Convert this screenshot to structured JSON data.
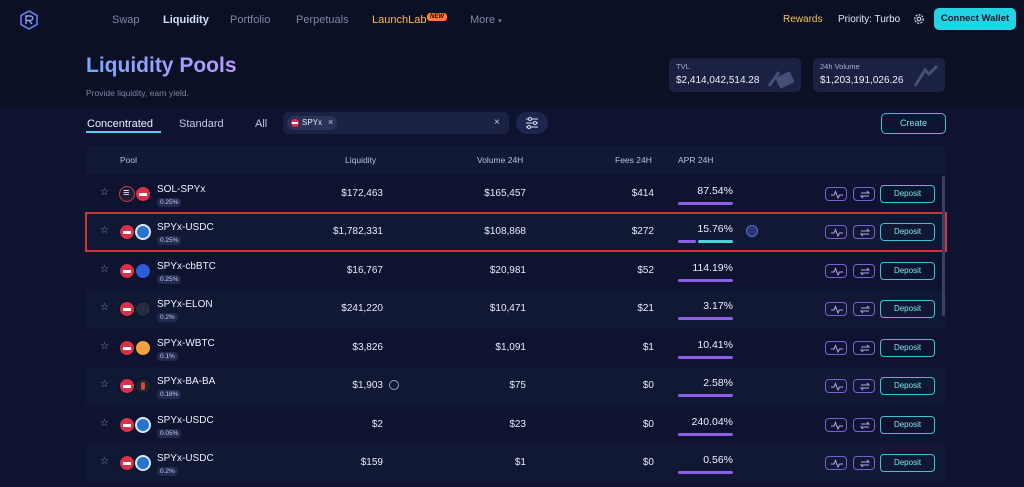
{
  "nav": {
    "links": [
      {
        "label": "Swap"
      },
      {
        "label": "Liquidity"
      },
      {
        "label": "Portfolio"
      },
      {
        "label": "Perpetuals"
      },
      {
        "label": "LaunchLab"
      },
      {
        "label": "More"
      }
    ],
    "new_badge": "NEW",
    "rewards": "Rewards",
    "priority": "Priority: Turbo",
    "connect": "Connect Wallet"
  },
  "hero": {
    "title": "Liquidity Pools",
    "subtitle": "Provide liquidity, earn yield."
  },
  "stats": {
    "tvl_label": "TVL",
    "tvl_value": "$2,414,042,514.28",
    "vol_label": "24h Volume",
    "vol_value": "$1,203,191,026.26"
  },
  "tabs": [
    "Concentrated",
    "Standard",
    "All"
  ],
  "search": {
    "chip": "SPYx"
  },
  "create_label": "Create",
  "columns": {
    "pool": "Pool",
    "liquidity": "Liquidity",
    "volume": "Volume 24H",
    "fees": "Fees 24H",
    "apr": "APR 24H"
  },
  "deposit_label": "Deposit",
  "colors": {
    "accent": "#22d3e3",
    "highlight": "#d5333b",
    "apr_bar": "#8e5ee8"
  },
  "rows": [
    {
      "name": "SOL-SPYx",
      "fee": "0.25%",
      "liquidity": "$172,463",
      "volume": "$165,457",
      "fees": "$414",
      "apr": "87.54%"
    },
    {
      "name": "SPYx-USDC",
      "fee": "0.25%",
      "liquidity": "$1,782,331",
      "volume": "$108,868",
      "fees": "$272",
      "apr": "15.76%"
    },
    {
      "name": "SPYx-cbBTC",
      "fee": "0.25%",
      "liquidity": "$16,767",
      "volume": "$20,981",
      "fees": "$52",
      "apr": "114.19%"
    },
    {
      "name": "SPYx-ELON",
      "fee": "0.2%",
      "liquidity": "$241,220",
      "volume": "$10,471",
      "fees": "$21",
      "apr": "3.17%"
    },
    {
      "name": "SPYx-WBTC",
      "fee": "0.1%",
      "liquidity": "$3,826",
      "volume": "$1,091",
      "fees": "$1",
      "apr": "10.41%"
    },
    {
      "name": "SPYx-BA-BA",
      "fee": "0.18%",
      "liquidity": "$1,903",
      "volume": "$75",
      "fees": "$0",
      "apr": "2.58%"
    },
    {
      "name": "SPYx-USDC",
      "fee": "0.05%",
      "liquidity": "$2",
      "volume": "$23",
      "fees": "$0",
      "apr": "240.04%"
    },
    {
      "name": "SPYx-USDC",
      "fee": "0.2%",
      "liquidity": "$159",
      "volume": "$1",
      "fees": "$0",
      "apr": "0.56%"
    }
  ]
}
